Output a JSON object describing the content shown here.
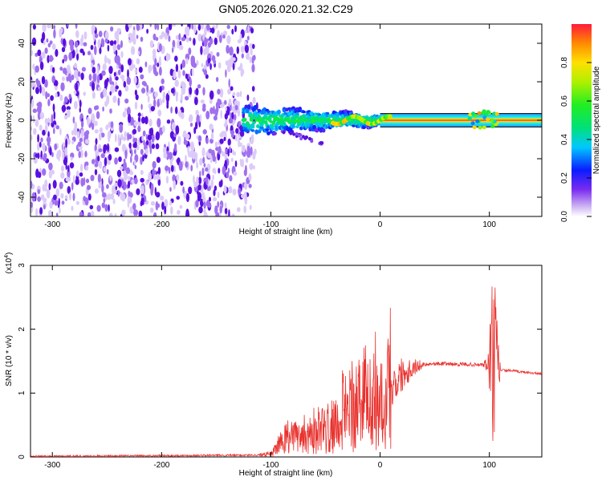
{
  "title": "GN05.2026.020.21.32.C29",
  "chart_data": [
    {
      "type": "heatmap",
      "xlabel": "Height of straight line (km)",
      "ylabel": "Frequency (Hz)",
      "xlim": [
        -320,
        148
      ],
      "ylim": [
        -50,
        50
      ],
      "x_ticks": [
        -300,
        -200,
        -100,
        0,
        100
      ],
      "y_ticks": [
        -40,
        -20,
        0,
        20,
        40
      ],
      "colorbar": {
        "label": "Normalized spectral amplitude",
        "range": [
          0.0,
          1.0
        ],
        "ticks": [
          "0.0",
          "0.2",
          "0.4",
          "0.6",
          "0.8"
        ]
      },
      "regions": [
        {
          "description": "diffuse low-amplitude noise",
          "x_range": [
            -320,
            -115
          ],
          "y_range": [
            -50,
            50
          ],
          "amplitude": 0.1
        },
        {
          "description": "signal band near 0 Hz, broadening",
          "x_range": [
            -125,
            0
          ],
          "y_range": [
            -8,
            8
          ],
          "amplitude": 0.4
        },
        {
          "description": "side lobe",
          "x_range": [
            -90,
            -50
          ],
          "y_range": [
            -15,
            -5
          ],
          "amplitude": 0.1
        },
        {
          "description": "narrow strong line near 0 Hz",
          "x_range": [
            0,
            148
          ],
          "y_range": [
            -2,
            2
          ],
          "amplitude": 0.95
        },
        {
          "description": "disturbance near 100 km",
          "x_range": [
            82,
            108
          ],
          "y_range": [
            -4,
            5
          ],
          "amplitude": 0.6
        }
      ]
    },
    {
      "type": "line",
      "xlabel": "Height of straight line (km)",
      "ylabel": "SNR (10 * v/v)",
      "y_scale_label": "(x10",
      "y_scale_exp": "4",
      "xlim": [
        -320,
        148
      ],
      "ylim": [
        0,
        3
      ],
      "x_ticks": [
        -300,
        -200,
        -100,
        0,
        100
      ],
      "y_ticks": [
        0,
        1,
        2,
        3
      ],
      "series": [
        {
          "color": "#e8322e",
          "x": [
            -320,
            -200,
            -110,
            -100,
            -90,
            -80,
            -70,
            -60,
            -50,
            -40,
            -30,
            -20,
            -10,
            0,
            10,
            20,
            30,
            40,
            50,
            60,
            70,
            80,
            90,
            100,
            103,
            106,
            110,
            120,
            130,
            148
          ],
          "y": [
            0.01,
            0.02,
            0.03,
            0.05,
            0.2,
            0.3,
            0.35,
            0.4,
            0.45,
            0.55,
            0.65,
            0.75,
            0.85,
            0.9,
            1.1,
            1.3,
            1.4,
            1.45,
            1.46,
            1.46,
            1.45,
            1.45,
            1.44,
            1.45,
            1.5,
            1.4,
            1.36,
            1.35,
            1.33,
            1.3
          ]
        }
      ]
    }
  ]
}
